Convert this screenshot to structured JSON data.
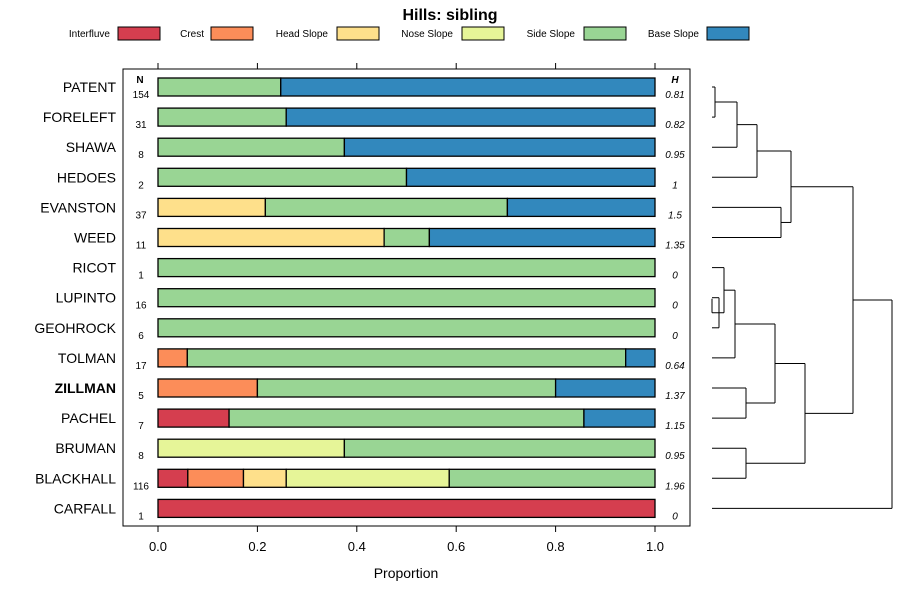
{
  "chart_data": {
    "type": "bar",
    "orientation": "horizontal-stacked",
    "title": "Hills: sibling",
    "xlabel": "Proportion",
    "xlim": [
      0,
      1
    ],
    "xticks": [
      "0.0",
      "0.2",
      "0.4",
      "0.6",
      "0.8",
      "1.0"
    ],
    "n_header": "N",
    "h_header": "H",
    "series": [
      {
        "name": "Interfluve",
        "color": "#d53e4f"
      },
      {
        "name": "Crest",
        "color": "#fc8d59"
      },
      {
        "name": "Head Slope",
        "color": "#fee08b"
      },
      {
        "name": "Nose Slope",
        "color": "#e6f598"
      },
      {
        "name": "Side Slope",
        "color": "#99d594"
      },
      {
        "name": "Base Slope",
        "color": "#3288bd"
      }
    ],
    "rows": [
      {
        "label": "PATENT",
        "n": "154",
        "h": "0.81",
        "bold": false,
        "values": [
          0,
          0,
          0,
          0,
          0.247,
          0.753
        ]
      },
      {
        "label": "FORELEFT",
        "n": "31",
        "h": "0.82",
        "bold": false,
        "values": [
          0,
          0,
          0,
          0,
          0.258,
          0.742
        ]
      },
      {
        "label": "SHAWA",
        "n": "8",
        "h": "0.95",
        "bold": false,
        "values": [
          0,
          0,
          0,
          0,
          0.375,
          0.625
        ]
      },
      {
        "label": "HEDOES",
        "n": "2",
        "h": "1",
        "bold": false,
        "values": [
          0,
          0,
          0,
          0,
          0.5,
          0.5
        ]
      },
      {
        "label": "EVANSTON",
        "n": "37",
        "h": "1.5",
        "bold": false,
        "values": [
          0,
          0,
          0.216,
          0,
          0.487,
          0.297
        ]
      },
      {
        "label": "WEED",
        "n": "11",
        "h": "1.35",
        "bold": false,
        "values": [
          0,
          0,
          0.455,
          0,
          0.091,
          0.454
        ]
      },
      {
        "label": "RICOT",
        "n": "1",
        "h": "0",
        "bold": false,
        "values": [
          0,
          0,
          0,
          0,
          1,
          0
        ]
      },
      {
        "label": "LUPINTO",
        "n": "16",
        "h": "0",
        "bold": false,
        "values": [
          0,
          0,
          0,
          0,
          1,
          0
        ]
      },
      {
        "label": "GEOHROCK",
        "n": "6",
        "h": "0",
        "bold": false,
        "values": [
          0,
          0,
          0,
          0,
          1,
          0
        ]
      },
      {
        "label": "TOLMAN",
        "n": "17",
        "h": "0.64",
        "bold": false,
        "values": [
          0,
          0.059,
          0,
          0,
          0.882,
          0.059
        ]
      },
      {
        "label": "ZILLMAN",
        "n": "5",
        "h": "1.37",
        "bold": true,
        "values": [
          0,
          0.2,
          0,
          0,
          0.6,
          0.2
        ]
      },
      {
        "label": "PACHEL",
        "n": "7",
        "h": "1.15",
        "bold": false,
        "values": [
          0.143,
          0,
          0,
          0,
          0.714,
          0.143
        ]
      },
      {
        "label": "BRUMAN",
        "n": "8",
        "h": "0.95",
        "bold": false,
        "values": [
          0,
          0,
          0,
          0.375,
          0.625,
          0
        ]
      },
      {
        "label": "BLACKHALL",
        "n": "116",
        "h": "1.96",
        "bold": false,
        "values": [
          0.06,
          0.112,
          0.086,
          0.328,
          0.414,
          0
        ]
      },
      {
        "label": "CARFALL",
        "n": "1",
        "h": "0",
        "bold": false,
        "values": [
          1,
          0,
          0,
          0,
          0,
          0
        ]
      }
    ]
  }
}
